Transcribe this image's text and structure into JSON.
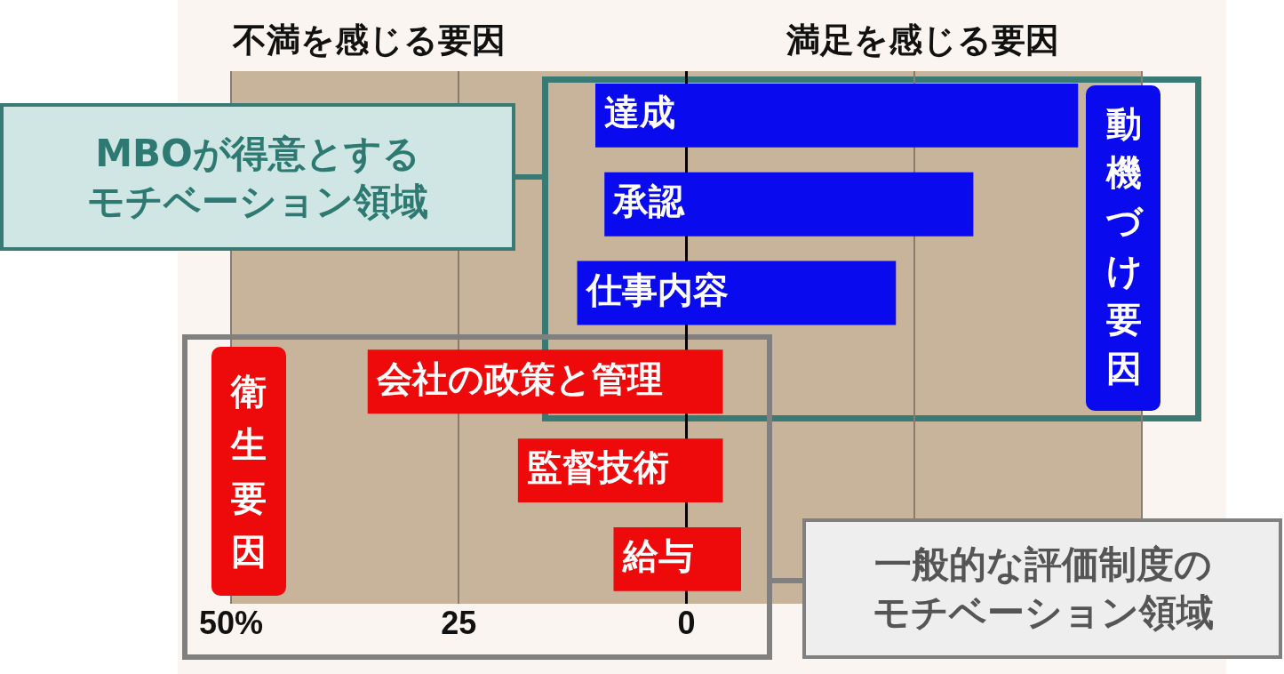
{
  "chart_data": {
    "type": "bar",
    "orientation": "horizontal",
    "categories": [
      "達成",
      "承認",
      "仕事内容",
      "会社の政策と管理",
      "監督技術",
      "給与"
    ],
    "base": [
      -10,
      -9,
      -12,
      -35,
      -18.5,
      -8
    ],
    "values": [
      53,
      40.5,
      35,
      39,
      22.5,
      14
    ],
    "colors": [
      "#0a0aee",
      "#0a0aee",
      "#0a0aee",
      "#ee0a0a",
      "#ee0a0a",
      "#ee0a0a"
    ],
    "xlim": [
      -50,
      50
    ],
    "xticks": [
      {
        "value": -50,
        "label": "50%"
      },
      {
        "value": -25,
        "label": "25"
      },
      0,
      {
        "value": 25,
        "label": null
      },
      {
        "value": 50,
        "label": null
      }
    ],
    "grid": "x",
    "annotations": [
      "不満を感じる要因",
      "満足を感じる要因",
      "動機づけ要因",
      "衛生要因",
      "MBOが得意とするモチベーション領域",
      "一般的な評価制度のモチベーション領域"
    ]
  }
}
